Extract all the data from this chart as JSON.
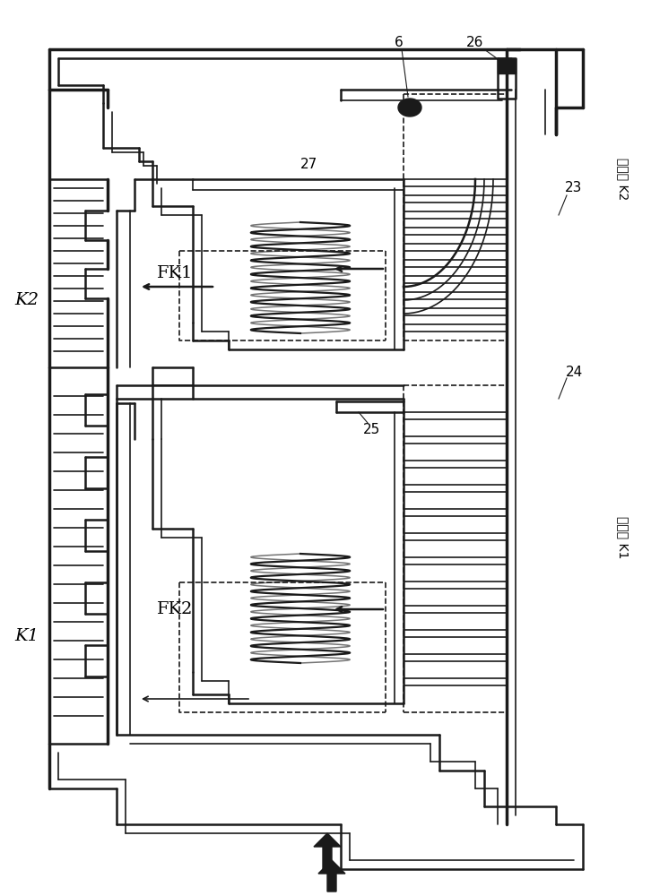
{
  "background_color": "#ffffff",
  "line_color": "#1a1a1a",
  "labels": {
    "K1_left": "K1",
    "K2_left": "K2",
    "FK1": "FK1",
    "FK2": "FK2",
    "num_6": "6",
    "num_23": "23",
    "num_24": "24",
    "num_25": "25",
    "num_26": "26",
    "num_27": "27",
    "cooling_K1": "冷却油 K1",
    "cooling_K2": "冷却油 K2"
  },
  "figsize": [
    7.26,
    10.0
  ],
  "dpi": 100
}
